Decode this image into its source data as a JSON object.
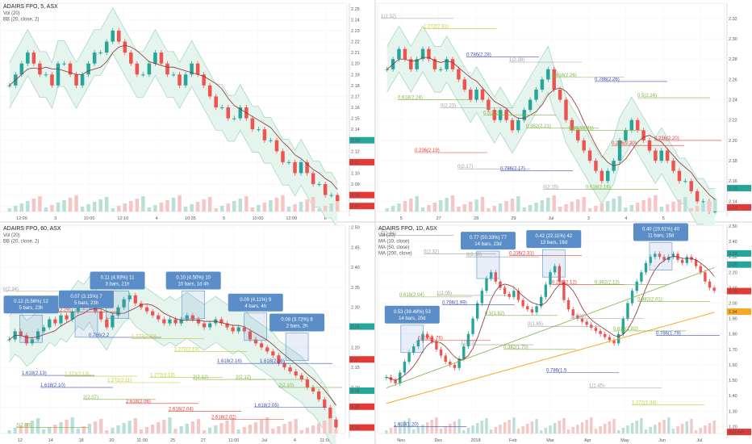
{
  "colors": {
    "up": "#26a69a",
    "down": "#ef5350",
    "band": "#a7d7c5",
    "band_fill": "#e6f4ee",
    "ma": "#8b2f2f",
    "fib_red": "#e53935",
    "fib_green": "#7cb342",
    "fib_blue": "#3f51b5",
    "fib_lime": "#c0ca33",
    "fib_gray": "#9e9e9e",
    "box": "#5b8ec8"
  },
  "chart_data": [
    {
      "panel": "top-left",
      "type": "candlestick",
      "title": "ADAIRS FPO, 5, ASX",
      "indicators": [
        "Vol (20)",
        "BB (20, close, 2)"
      ],
      "x_ticks": [
        "12:09",
        "3",
        "10:00",
        "12:10",
        "4",
        "10:35",
        "5",
        "10:00",
        "12:00",
        "6"
      ],
      "y_ticks": [
        "2.25",
        "2.24",
        "2.23",
        "2.22",
        "2.21",
        "2.20",
        "2.19",
        "2.18",
        "2.17",
        "2.16",
        "2.15",
        "2.14",
        "2.13",
        "2.12",
        "2.11",
        "2.10",
        "2.09",
        "2.08",
        "2.07"
      ],
      "ylim": [
        2.065,
        2.255
      ],
      "tags": [
        {
          "text": "2.13",
          "color": "#26a69a",
          "y": 2.13
        },
        {
          "text": "2.11",
          "color": "#e53935",
          "y": 2.11
        },
        {
          "text": "2.08",
          "color": "#e53935",
          "y": 2.08
        },
        {
          "text": "2.07",
          "color": "#e53935",
          "y": 2.07
        }
      ],
      "series": {
        "close": [
          2.18,
          2.19,
          2.2,
          2.21,
          2.2,
          2.19,
          2.19,
          2.18,
          2.2,
          2.2,
          2.19,
          2.18,
          2.19,
          2.2,
          2.21,
          2.21,
          2.22,
          2.23,
          2.22,
          2.21,
          2.2,
          2.19,
          2.19,
          2.2,
          2.21,
          2.2,
          2.19,
          2.19,
          2.18,
          2.19,
          2.2,
          2.19,
          2.18,
          2.17,
          2.16,
          2.16,
          2.15,
          2.15,
          2.16,
          2.15,
          2.14,
          2.14,
          2.13,
          2.13,
          2.12,
          2.11,
          2.11,
          2.1,
          2.11,
          2.1,
          2.09,
          2.09,
          2.08,
          2.08,
          2.07
        ]
      }
    },
    {
      "panel": "top-right",
      "type": "candlestick",
      "title": "",
      "x_ticks": [
        "5",
        "27",
        "28",
        "29",
        "Jul",
        "3",
        "4",
        "5",
        "6"
      ],
      "y_ticks": [
        "2.32",
        "2.30",
        "2.28",
        "2.26",
        "2.24",
        "2.22",
        "2.20",
        "2.18",
        "2.16",
        "2.14"
      ],
      "ylim": [
        2.13,
        2.335
      ],
      "tags": [
        {
          "text": "2.15",
          "color": "#26a69a",
          "y": 2.153
        },
        {
          "text": "2.13",
          "color": "#e53935",
          "y": 2.134
        }
      ],
      "fib_labels": [
        {
          "text": "1(2.32)",
          "y": 2.32,
          "color": "#9e9e9e"
        },
        {
          "text": "1.272(2.31)",
          "y": 2.31,
          "color": "#c0ca33"
        },
        {
          "text": "0.786(2.28)",
          "y": 2.282,
          "color": "#3f51b5"
        },
        {
          "text": "1(2.28)",
          "y": 2.277,
          "color": "#9e9e9e"
        },
        {
          "text": "0.618(2.26)",
          "y": 2.262,
          "color": "#7cb342"
        },
        {
          "text": "0.786(2.26)",
          "y": 2.258,
          "color": "#3f51b5"
        },
        {
          "text": "0.5(2.24)",
          "y": 2.242,
          "color": "#7cb342"
        },
        {
          "text": "0.618(2.24)",
          "y": 2.24,
          "color": "#7cb342"
        },
        {
          "text": "0(2.23)",
          "y": 2.232,
          "color": "#9e9e9e"
        },
        {
          "text": "0.5(2.22)",
          "y": 2.225,
          "color": "#7cb342"
        },
        {
          "text": "0.382(2.21)",
          "y": 2.212,
          "color": "#7cb342"
        },
        {
          "text": "0.382(2.21)",
          "y": 2.21,
          "color": "#7cb342"
        },
        {
          "text": "0.236(2.20)",
          "y": 2.195,
          "color": "#e53935"
        },
        {
          "text": "0.236(2.20)",
          "y": 2.2,
          "color": "#e53935"
        },
        {
          "text": "0.236(2.19)",
          "y": 2.188,
          "color": "#e53935"
        },
        {
          "text": "0(2.17)",
          "y": 2.172,
          "color": "#9e9e9e"
        },
        {
          "text": "0.786(2.17)",
          "y": 2.17,
          "color": "#3f51b5"
        },
        {
          "text": "0(2.15)",
          "y": 2.152,
          "color": "#9e9e9e"
        },
        {
          "text": "0.618(2.16)",
          "y": 2.152,
          "color": "#7cb342"
        }
      ],
      "series": {
        "close": [
          2.27,
          2.28,
          2.29,
          2.28,
          2.27,
          2.28,
          2.29,
          2.28,
          2.27,
          2.27,
          2.28,
          2.27,
          2.26,
          2.25,
          2.24,
          2.25,
          2.24,
          2.23,
          2.22,
          2.23,
          2.22,
          2.21,
          2.22,
          2.23,
          2.24,
          2.25,
          2.26,
          2.27,
          2.25,
          2.24,
          2.22,
          2.21,
          2.2,
          2.19,
          2.18,
          2.17,
          2.16,
          2.17,
          2.18,
          2.2,
          2.21,
          2.22,
          2.21,
          2.2,
          2.19,
          2.18,
          2.19,
          2.18,
          2.17,
          2.16,
          2.16,
          2.15,
          2.14,
          2.14,
          2.13,
          2.13
        ]
      }
    },
    {
      "panel": "bottom-left",
      "type": "candlestick",
      "title": "ADAIRS FPO, 60, ASX",
      "indicators": [
        "Vol (20)",
        "BB (20, close, 2)"
      ],
      "x_ticks": [
        "12",
        "14",
        "18",
        "20",
        "11:00",
        "25",
        "27",
        "11:00",
        "Jul",
        "4",
        "11:00"
      ],
      "y_ticks": [
        "2.50",
        "2.45",
        "2.40",
        "2.35",
        "2.30",
        "2.25",
        "2.20",
        "2.15",
        "2.10",
        "2.05",
        "2.00"
      ],
      "ylim": [
        1.985,
        2.505
      ],
      "tags": [
        {
          "text": "2.25",
          "color": "#26a69a",
          "y": 2.252
        },
        {
          "text": "2.17",
          "color": "#e53935",
          "y": 2.17
        },
        {
          "text": "2.09",
          "color": "#26a69a",
          "y": 2.092
        },
        {
          "text": "2.05",
          "color": "#e53935",
          "y": 2.052
        },
        {
          "text": "2.00",
          "color": "#e53935",
          "y": 2.0
        }
      ],
      "boxes": [
        {
          "lines": [
            "0.12 (5.56%) 12",
            "5 bars, 23h"
          ],
          "x_frac": 0.09,
          "y": 2.305
        },
        {
          "lines": [
            "0.07 (3.15%) 7",
            "5 bars, 23h"
          ],
          "x_frac": 0.25,
          "y": 2.318
        },
        {
          "lines": [
            "0.11 (4.93%) 11",
            "3 bars, 21h"
          ],
          "x_frac": 0.34,
          "y": 2.365
        },
        {
          "lines": [
            "0.10 (4.50%) 10",
            "10 bars, 1d 4h"
          ],
          "x_frac": 0.56,
          "y": 2.365
        },
        {
          "lines": [
            "0.09 (4.11%) 9",
            "4 bars, 4h"
          ],
          "x_frac": 0.74,
          "y": 2.31
        },
        {
          "lines": [
            "0.08 (3.72%) 8",
            "2 bars, 2h"
          ],
          "x_frac": 0.86,
          "y": 2.26
        }
      ],
      "fib_labels": [
        {
          "text": "0(2.34)",
          "y": 2.34,
          "color": "#9e9e9e"
        },
        {
          "text": "0.236(2.29)",
          "y": 2.288,
          "color": "#e53935"
        },
        {
          "text": "0.786(2.2",
          "y": 2.225,
          "color": "#3f51b5"
        },
        {
          "text": "1.272(2.20)",
          "y": 2.222,
          "color": "#c0ca33"
        },
        {
          "text": "1.272(2.19)",
          "y": 2.19,
          "color": "#c0ca33"
        },
        {
          "text": "1.618(2.16)",
          "y": 2.16,
          "color": "#3f51b5"
        },
        {
          "text": "1.618(2.16)",
          "y": 2.16,
          "color": "#3f51b5"
        },
        {
          "text": "1.618(2.13)",
          "y": 2.13,
          "color": "#3f51b5"
        },
        {
          "text": "1.272(2.13)",
          "y": 2.128,
          "color": "#c0ca33"
        },
        {
          "text": "1.272(2.11)",
          "y": 2.112,
          "color": "#c0ca33"
        },
        {
          "text": "1.272(2.13)",
          "y": 2.125,
          "color": "#c0ca33"
        },
        {
          "text": "2(2.12)",
          "y": 2.12,
          "color": "#7cb342"
        },
        {
          "text": "2(2.12)",
          "y": 2.12,
          "color": "#7cb342"
        },
        {
          "text": "2(2.10)",
          "y": 2.1,
          "color": "#7cb342"
        },
        {
          "text": "1.618(2.10)",
          "y": 2.1,
          "color": "#3f51b5"
        },
        {
          "text": "2(2.07)",
          "y": 2.07,
          "color": "#7cb342"
        },
        {
          "text": "2.618(2.06)",
          "y": 2.06,
          "color": "#e53935"
        },
        {
          "text": "2.618(2.04)",
          "y": 2.04,
          "color": "#e53935"
        },
        {
          "text": "2.618(2.02)",
          "y": 2.02,
          "color": "#e53935"
        },
        {
          "text": "1.618(2.05)",
          "y": 2.05,
          "color": "#3f51b5"
        },
        {
          "text": "2(2.00)",
          "y": 2.0,
          "color": "#7cb342"
        }
      ],
      "series": {
        "close": [
          2.22,
          2.24,
          2.23,
          2.21,
          2.22,
          2.24,
          2.25,
          2.27,
          2.26,
          2.28,
          2.27,
          2.29,
          2.31,
          2.3,
          2.32,
          2.29,
          2.27,
          2.25,
          2.28,
          2.3,
          2.32,
          2.33,
          2.31,
          2.3,
          2.29,
          2.28,
          2.27,
          2.26,
          2.27,
          2.26,
          2.27,
          2.28,
          2.27,
          2.26,
          2.25,
          2.26,
          2.27,
          2.26,
          2.25,
          2.24,
          2.25,
          2.24,
          2.22,
          2.21,
          2.2,
          2.19,
          2.18,
          2.16,
          2.15,
          2.14,
          2.13,
          2.12,
          2.1,
          2.09,
          2.07,
          2.05,
          2.02,
          2.0
        ]
      }
    },
    {
      "panel": "bottom-right",
      "type": "candlestick",
      "title": "ADAIRS FPO, 1D, ASX",
      "indicators": [
        "Vol (20)",
        "MA (10, close)",
        "MA (50, close)",
        "MA (200, close)"
      ],
      "x_ticks": [
        "Nov",
        "Dec",
        "2018",
        "Feb",
        "Mar",
        "Apr",
        "May",
        "Jun",
        "Jul"
      ],
      "y_ticks": [
        "2.50",
        "2.40",
        "2.30",
        "2.20",
        "2.10",
        "2.00",
        "1.90",
        "1.80",
        "1.70",
        "1.60",
        "1.50",
        "1.40",
        "1.30",
        "1.20"
      ],
      "ylim": [
        1.155,
        2.505
      ],
      "tags": [
        {
          "text": "2.32",
          "color": "#26a69a",
          "y": 2.322
        },
        {
          "text": "2.25",
          "color": "#26a69a",
          "y": 2.25
        },
        {
          "text": "2.08",
          "color": "#e53935",
          "y": 2.078
        },
        {
          "text": "1.94",
          "color": "#f9a825",
          "y": 1.945
        },
        {
          "text": "383.44K",
          "color": "#e53935",
          "y": 1.165
        }
      ],
      "boxes": [
        {
          "lines": [
            "0.53 (39.48%) 53",
            "14 bars, 20d"
          ],
          "x_frac": 0.1,
          "y": 1.92
        },
        {
          "lines": [
            "0.77 (50.33%) 77",
            "14 bars, 23d"
          ],
          "x_frac": 0.32,
          "y": 2.4
        },
        {
          "lines": [
            "0.42 (22.11%) 42",
            "13 bars, 19d"
          ],
          "x_frac": 0.51,
          "y": 2.41
        },
        {
          "lines": [
            "0.40 (19.61%) 40",
            "11 bars, 15d"
          ],
          "x_frac": 0.82,
          "y": 2.455
        }
      ],
      "fib_labels": [
        {
          "text": "0(2.44)",
          "y": 2.44,
          "color": "#9e9e9e"
        },
        {
          "text": "0(2.32)",
          "y": 2.32,
          "color": "#9e9e9e"
        },
        {
          "text": "0(2.30)",
          "y": 2.3,
          "color": "#9e9e9e"
        },
        {
          "text": "0.236(2.31)",
          "y": 2.31,
          "color": "#e53935"
        },
        {
          "text": "0.236(2.12)",
          "y": 2.12,
          "color": "#e53935"
        },
        {
          "text": "0.382(2.12)",
          "y": 2.12,
          "color": "#7cb342"
        },
        {
          "text": "0.382(2.01)",
          "y": 2.01,
          "color": "#7cb342"
        },
        {
          "text": "0.618(2.04)",
          "y": 2.04,
          "color": "#7cb342"
        },
        {
          "text": "0.786(1.99)",
          "y": 1.99,
          "color": "#3f51b5"
        },
        {
          "text": "0.5(1.92)",
          "y": 1.92,
          "color": "#7cb342"
        },
        {
          "text": "0(1.85)",
          "y": 1.85,
          "color": "#9e9e9e"
        },
        {
          "text": "1(1.90)",
          "y": 1.9,
          "color": "#9e9e9e"
        },
        {
          "text": "0.618(1.82)",
          "y": 1.82,
          "color": "#7cb342"
        },
        {
          "text": "0.786(1.79)",
          "y": 1.79,
          "color": "#3f51b5"
        },
        {
          "text": "0.236(1.76)",
          "y": 1.76,
          "color": "#e53935"
        },
        {
          "text": "1(1.73)",
          "y": 1.73,
          "color": "#9e9e9e"
        },
        {
          "text": "0.382(1.70)",
          "y": 1.7,
          "color": "#7cb342"
        },
        {
          "text": "0.786(1.5",
          "y": 1.55,
          "color": "#3f51b5"
        },
        {
          "text": "1(1.45)",
          "y": 1.45,
          "color": "#9e9e9e"
        },
        {
          "text": "1.272(1.34)",
          "y": 1.34,
          "color": "#c0ca33"
        },
        {
          "text": "1.618(1.20)",
          "y": 1.2,
          "color": "#3f51b5"
        },
        {
          "text": "1(2.05)",
          "y": 2.05,
          "color": "#9e9e9e"
        }
      ],
      "series": {
        "close": [
          1.52,
          1.5,
          1.48,
          1.55,
          1.62,
          1.68,
          1.72,
          1.76,
          1.8,
          1.78,
          1.75,
          1.7,
          1.66,
          1.62,
          1.6,
          1.58,
          1.64,
          1.72,
          1.8,
          1.9,
          2.0,
          2.08,
          2.16,
          2.2,
          2.14,
          2.1,
          2.06,
          2.04,
          2.08,
          2.02,
          1.98,
          1.96,
          1.94,
          1.98,
          2.04,
          2.12,
          2.2,
          2.24,
          2.14,
          2.02,
          1.96,
          1.92,
          1.9,
          1.88,
          1.86,
          1.84,
          1.82,
          1.8,
          1.78,
          1.76,
          1.74,
          1.8,
          1.9,
          2.0,
          2.08,
          2.14,
          2.2,
          2.26,
          2.3,
          2.32,
          2.3,
          2.28,
          2.3,
          2.32,
          2.28,
          2.26,
          2.3,
          2.28,
          2.24,
          2.2,
          2.14,
          2.1,
          2.08
        ]
      }
    }
  ]
}
